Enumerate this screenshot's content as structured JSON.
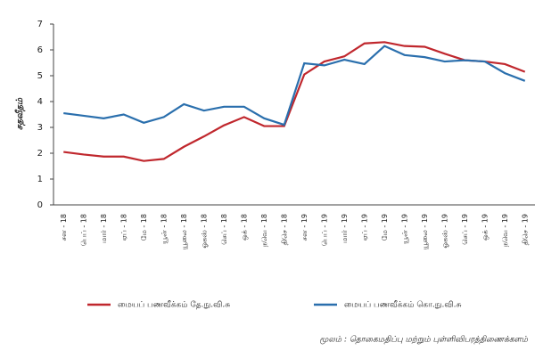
{
  "chart_data": {
    "type": "line",
    "y_label": "சதவீதம்",
    "source": "மூலம் : தொகைமதிப்பு மற்றும் புள்ளிவிபரத்திணைக்களம்",
    "categories": [
      "சன - 18",
      "பெப் - 18",
      "மார் - 18",
      "ஏப் - 18",
      "மே - 18",
      "யூன் - 18",
      "யூலை - 18",
      "ஓகஸ் - 18",
      "செப் - 18",
      "ஒக் - 18",
      "நவெ - 18",
      "திசெ - 18",
      "சன - 19",
      "பெப் - 19",
      "மார் - 19",
      "ஏப் - 19",
      "மே - 19",
      "யூன் - 19",
      "யூலை - 19",
      "ஓகஸ் - 19",
      "செப் - 19",
      "ஒக் - 19",
      "நவெ - 19",
      "திசெ - 19"
    ],
    "series": [
      {
        "name": "மையப் பணவீக்கம் தே.நு.வி.சு",
        "color": "#c0272d",
        "values": [
          2.05,
          1.95,
          1.87,
          1.87,
          1.7,
          1.78,
          2.25,
          2.65,
          3.08,
          3.4,
          3.05,
          3.05,
          5.05,
          5.55,
          5.75,
          6.25,
          6.3,
          6.15,
          6.12,
          5.85,
          5.6,
          5.55,
          5.45,
          5.15
        ]
      },
      {
        "name": "மையப் பணவீக்கம் கொ.நு.வி.சு",
        "color": "#2a6fad",
        "values": [
          3.55,
          3.45,
          3.35,
          3.5,
          3.18,
          3.4,
          3.9,
          3.65,
          3.8,
          3.8,
          3.35,
          3.1,
          5.48,
          5.4,
          5.62,
          5.45,
          6.15,
          5.8,
          5.72,
          5.55,
          5.6,
          5.55,
          5.1,
          4.8
        ]
      }
    ],
    "ylim": [
      0,
      7
    ],
    "yticks": [
      0,
      1,
      2,
      3,
      4,
      5,
      6,
      7
    ],
    "grid": false
  }
}
